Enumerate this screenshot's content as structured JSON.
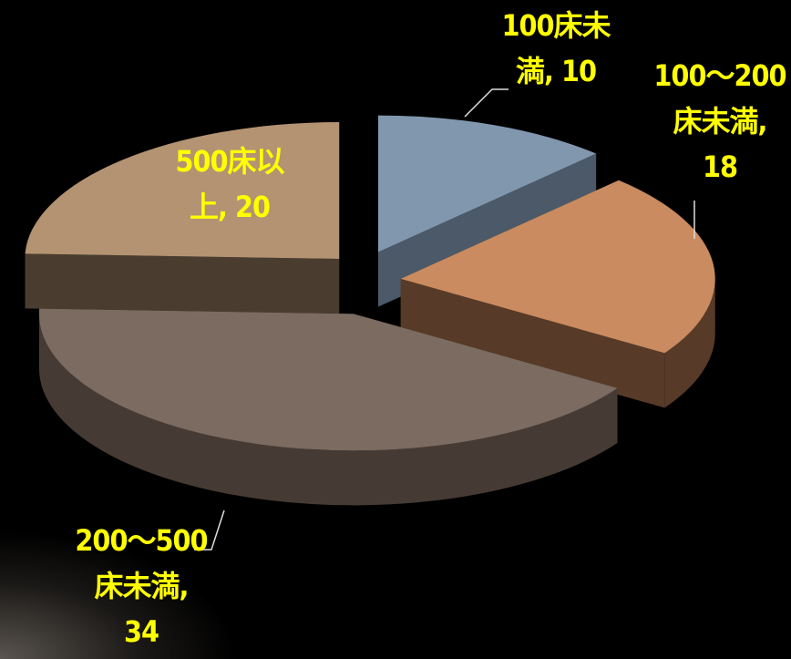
{
  "chart_data": {
    "type": "pie3d",
    "categories": [
      "100床未満",
      "100～200床未満",
      "200～500床未満",
      "500床以上"
    ],
    "values": [
      10,
      18,
      34,
      20
    ],
    "colors": [
      "#8197ae",
      "#c98b5f",
      "#7b6b60",
      "#b39372"
    ],
    "side_colors": [
      "#4b5968",
      "#573a27",
      "#463b34",
      "#4a3d30"
    ]
  }
}
